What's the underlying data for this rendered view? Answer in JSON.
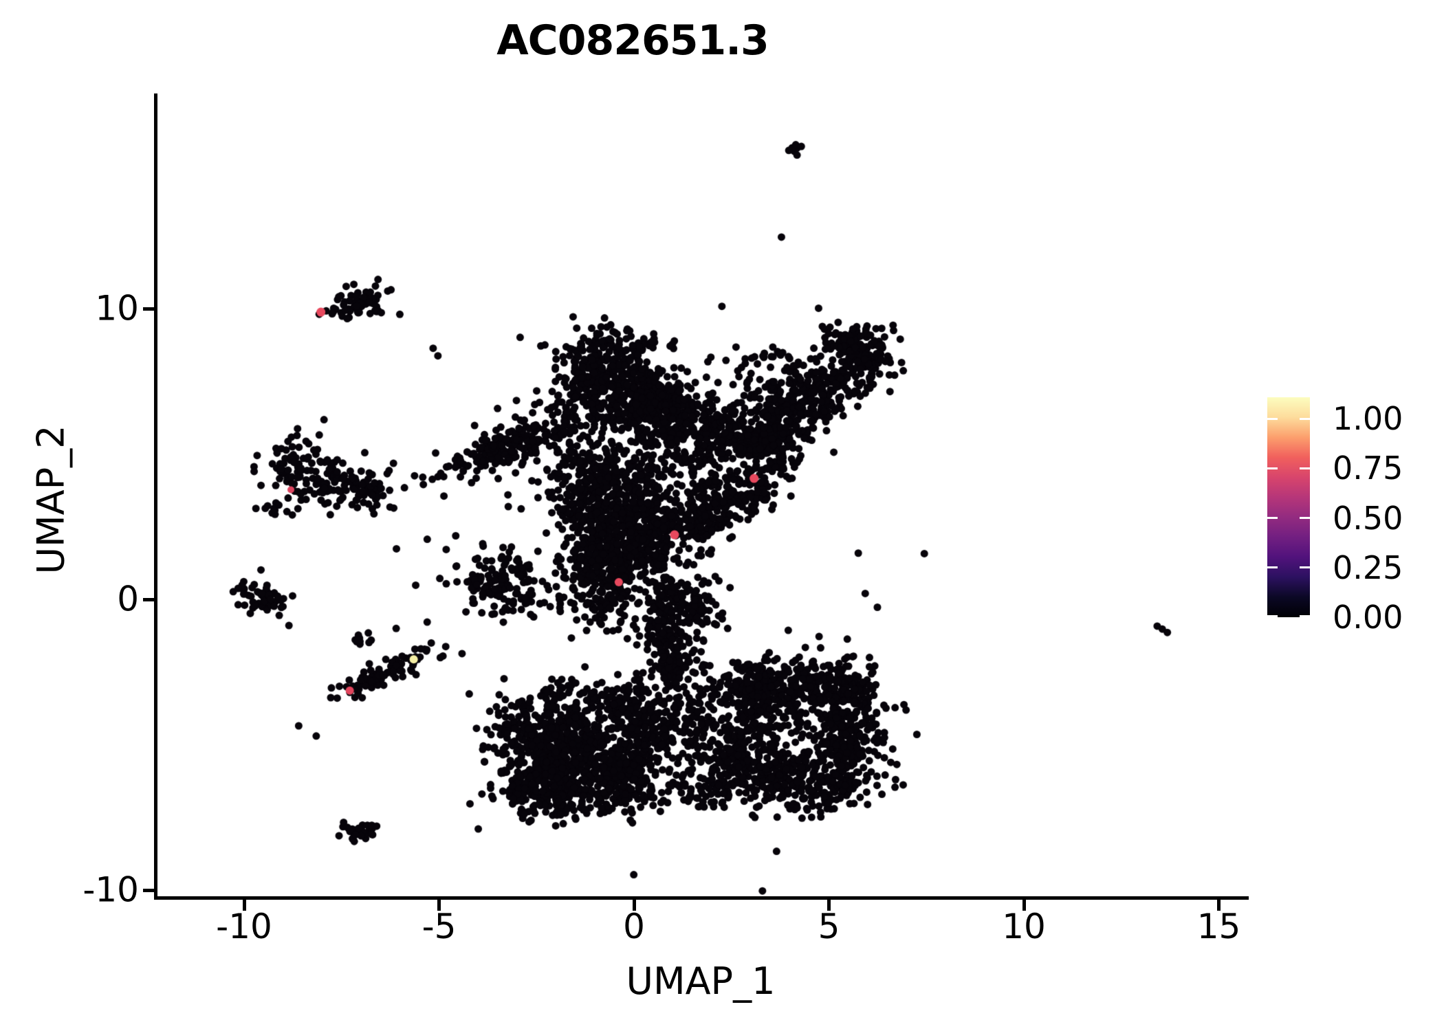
{
  "title": "AC082651.3",
  "axes": {
    "x_label": "UMAP_1",
    "y_label": "UMAP_2",
    "x_ticks": [
      {
        "value": -10,
        "label": "-10"
      },
      {
        "value": -5,
        "label": "-5"
      },
      {
        "value": 0,
        "label": "0"
      },
      {
        "value": 5,
        "label": "5"
      },
      {
        "value": 10,
        "label": "10"
      },
      {
        "value": 15,
        "label": "15"
      }
    ],
    "y_ticks": [
      {
        "value": 10,
        "label": "10"
      },
      {
        "value": 0,
        "label": "0"
      },
      {
        "value": -10,
        "label": "-10"
      }
    ]
  },
  "legend": {
    "ticks": [
      {
        "value": 1.0,
        "label": "1.00"
      },
      {
        "value": 0.75,
        "label": "0.75"
      },
      {
        "value": 0.5,
        "label": "0.50"
      },
      {
        "value": 0.25,
        "label": "0.25"
      },
      {
        "value": 0.0,
        "label": "0.00"
      }
    ],
    "gradient_stops": [
      "#000004",
      "#0B0825",
      "#2C1160",
      "#51127C",
      "#721F81",
      "#932B80",
      "#B63679",
      "#D8456C",
      "#F1605D",
      "#FC9F6D",
      "#FDDC9C",
      "#FCFDBF"
    ]
  },
  "chart_data": {
    "type": "scatter",
    "title": "AC082651.3",
    "xlabel": "UMAP_1",
    "ylabel": "UMAP_2",
    "xlim": [
      -12.2,
      15.7
    ],
    "ylim": [
      -10.3,
      17.3
    ],
    "x_tick_values": [
      -10,
      -5,
      0,
      5,
      10,
      15
    ],
    "y_tick_values": [
      -10,
      0,
      10
    ],
    "grid": false,
    "legend_position": "right",
    "colorbar": {
      "min": 0.0,
      "max": 1.108,
      "tick_values": [
        0.0,
        0.25,
        0.5,
        0.75,
        1.0
      ],
      "colormap": "magma"
    },
    "point_color": "#07040a",
    "point_radius": 5.5,
    "clusters": [
      {
        "name": "top-speck",
        "x": 4.15,
        "y": 15.45,
        "sx": 0.1,
        "sy": 0.15,
        "rot": 0,
        "n": 9
      },
      {
        "name": "topleft-main",
        "x": -6.95,
        "y": 10.25,
        "sx": 0.32,
        "sy": 0.3,
        "rot": 0,
        "n": 55
      },
      {
        "name": "topleft-strip",
        "x": -7.55,
        "y": 9.85,
        "sx": 0.28,
        "sy": 0.1,
        "rot": 0,
        "n": 14
      },
      {
        "name": "leftmid-west",
        "x": -8.55,
        "y": 4.5,
        "sx": 0.42,
        "sy": 0.55,
        "rot": 0,
        "n": 85
      },
      {
        "name": "leftmid-east",
        "x": -7.35,
        "y": 3.9,
        "sx": 0.62,
        "sy": 0.42,
        "rot": -10,
        "n": 115
      },
      {
        "name": "leftmid-tail",
        "x": -9.35,
        "y": 3.05,
        "sx": 0.22,
        "sy": 0.18,
        "rot": 0,
        "n": 10
      },
      {
        "name": "left-small",
        "x": -9.65,
        "y": 0.15,
        "sx": 0.3,
        "sy": 0.35,
        "rot": 0,
        "n": 42
      },
      {
        "name": "left-small-ext",
        "x": -9.05,
        "y": 0.0,
        "sx": 0.22,
        "sy": 0.15,
        "rot": 0,
        "n": 10
      },
      {
        "name": "diag-small",
        "x": -6.5,
        "y": -2.6,
        "sx": 0.75,
        "sy": 0.17,
        "rot": 33,
        "n": 85
      },
      {
        "name": "diag-top-blob",
        "x": -6.95,
        "y": -1.35,
        "sx": 0.16,
        "sy": 0.13,
        "rot": 0,
        "n": 10
      },
      {
        "name": "botleft-tiny",
        "x": -7.05,
        "y": -7.9,
        "sx": 0.26,
        "sy": 0.17,
        "rot": 0,
        "n": 30
      },
      {
        "name": "head-west",
        "x": -0.75,
        "y": 7.5,
        "sx": 0.6,
        "sy": 0.75,
        "rot": 0,
        "n": 360
      },
      {
        "name": "head-east",
        "x": 0.45,
        "y": 6.8,
        "sx": 0.55,
        "sy": 0.6,
        "rot": 0,
        "n": 280
      },
      {
        "name": "head-top-fringe",
        "x": -0.3,
        "y": 8.8,
        "sx": 0.8,
        "sy": 0.3,
        "rot": 0,
        "n": 50
      },
      {
        "name": "head-arm-join",
        "x": 2.0,
        "y": 6.1,
        "sx": 0.6,
        "sy": 0.55,
        "rot": 0,
        "n": 150
      },
      {
        "name": "ne-arm-low",
        "x": 3.3,
        "y": 5.4,
        "sx": 0.5,
        "sy": 0.45,
        "rot": 30,
        "n": 170
      },
      {
        "name": "ne-arm-mid",
        "x": 4.5,
        "y": 6.9,
        "sx": 0.85,
        "sy": 0.5,
        "rot": 42,
        "n": 260
      },
      {
        "name": "ne-tip",
        "x": 5.8,
        "y": 8.5,
        "sx": 0.42,
        "sy": 0.55,
        "rot": 20,
        "n": 170
      },
      {
        "name": "ne-sparse",
        "x": 3.7,
        "y": 7.8,
        "sx": 0.7,
        "sy": 0.6,
        "rot": 0,
        "n": 70
      },
      {
        "name": "shoulder-arm",
        "x": -3.1,
        "y": 5.3,
        "sx": 1.0,
        "sy": 0.32,
        "rot": 28,
        "n": 170
      },
      {
        "name": "shoulder-halo",
        "x": -3.3,
        "y": 5.2,
        "sx": 1.2,
        "sy": 0.6,
        "rot": 28,
        "n": 45
      },
      {
        "name": "west-hand",
        "x": -3.4,
        "y": 0.5,
        "sx": 0.55,
        "sy": 0.5,
        "rot": 0,
        "n": 120
      },
      {
        "name": "west-hand-halo",
        "x": -3.2,
        "y": 0.6,
        "sx": 0.9,
        "sy": 0.8,
        "rot": 0,
        "n": 35
      },
      {
        "name": "band-upper",
        "x": -0.9,
        "y": 3.6,
        "sx": 0.6,
        "sy": 1.2,
        "rot": 8,
        "n": 420
      },
      {
        "name": "band-mid",
        "x": 0.1,
        "y": 2.2,
        "sx": 0.7,
        "sy": 1.0,
        "rot": 0,
        "n": 320
      },
      {
        "name": "band-lower",
        "x": -0.85,
        "y": 0.8,
        "sx": 0.5,
        "sy": 0.8,
        "rot": 0,
        "n": 240
      },
      {
        "name": "band-fill",
        "x": 0.6,
        "y": 4.3,
        "sx": 0.8,
        "sy": 1.0,
        "rot": 0,
        "n": 130
      },
      {
        "name": "right-band",
        "x": 2.2,
        "y": 3.2,
        "sx": 1.05,
        "sy": 0.4,
        "rot": 42,
        "n": 270
      },
      {
        "name": "mid-sparse",
        "x": 1.6,
        "y": 4.9,
        "sx": 0.9,
        "sy": 0.8,
        "rot": 0,
        "n": 80
      },
      {
        "name": "neck-upper",
        "x": 1.1,
        "y": 0.1,
        "sx": 0.35,
        "sy": 0.5,
        "rot": 0,
        "n": 90
      },
      {
        "name": "neck-mid",
        "x": 0.8,
        "y": -1.2,
        "sx": 0.3,
        "sy": 0.6,
        "rot": 0,
        "n": 85
      },
      {
        "name": "neck-lower",
        "x": 1.0,
        "y": -2.4,
        "sx": 0.38,
        "sy": 0.5,
        "rot": 0,
        "n": 80
      },
      {
        "name": "neck-side",
        "x": 1.75,
        "y": -0.4,
        "sx": 0.3,
        "sy": 0.35,
        "rot": 0,
        "n": 40
      },
      {
        "name": "lowleft-core",
        "x": -1.8,
        "y": -5.0,
        "sx": 0.8,
        "sy": 0.8,
        "rot": 0,
        "n": 400
      },
      {
        "name": "lowleft-east",
        "x": -0.5,
        "y": -6.0,
        "sx": 0.8,
        "sy": 0.7,
        "rot": 0,
        "n": 360
      },
      {
        "name": "lowleft-south",
        "x": -2.3,
        "y": -6.5,
        "sx": 0.6,
        "sy": 0.5,
        "rot": 0,
        "n": 210
      },
      {
        "name": "lowleft-north",
        "x": 0.2,
        "y": -4.2,
        "sx": 0.6,
        "sy": 0.6,
        "rot": 0,
        "n": 170
      },
      {
        "name": "lowleft-fringe",
        "x": -1.0,
        "y": -3.5,
        "sx": 1.0,
        "sy": 0.4,
        "rot": 0,
        "n": 110
      },
      {
        "name": "lowleft-west",
        "x": -3.0,
        "y": -4.3,
        "sx": 0.4,
        "sy": 0.4,
        "rot": 0,
        "n": 55
      },
      {
        "name": "lowright-nw",
        "x": 3.0,
        "y": -3.2,
        "sx": 0.6,
        "sy": 0.5,
        "rot": 0,
        "n": 190
      },
      {
        "name": "lowright-north",
        "x": 4.6,
        "y": -2.9,
        "sx": 0.8,
        "sy": 0.5,
        "rot": 0,
        "n": 230
      },
      {
        "name": "lowright-east",
        "x": 5.5,
        "y": -4.6,
        "sx": 0.5,
        "sy": 0.9,
        "rot": 0,
        "n": 250
      },
      {
        "name": "lowright-south",
        "x": 4.2,
        "y": -6.3,
        "sx": 0.9,
        "sy": 0.5,
        "rot": 0,
        "n": 270
      },
      {
        "name": "lowright-west",
        "x": 2.7,
        "y": -5.2,
        "sx": 0.5,
        "sy": 0.7,
        "rot": 0,
        "n": 190
      },
      {
        "name": "lowright-fill",
        "x": 4.1,
        "y": -4.4,
        "sx": 0.7,
        "sy": 0.7,
        "rot": 0,
        "n": 70
      },
      {
        "name": "bridge-vert",
        "x": 1.6,
        "y": -4.6,
        "sx": 0.25,
        "sy": 0.8,
        "rot": 0,
        "n": 65
      },
      {
        "name": "bridge-south",
        "x": 1.9,
        "y": -6.7,
        "sx": 0.4,
        "sy": 0.3,
        "rot": 0,
        "n": 40
      },
      {
        "name": "outer-halo",
        "x": 0.5,
        "y": 1.0,
        "sx": 3.0,
        "sy": 4.2,
        "rot": 0,
        "n": 80
      }
    ],
    "singles": [
      [
        -5.2,
        -1.5
      ],
      [
        -6.6,
        -7.8
      ],
      [
        -8.6,
        -4.35
      ],
      [
        -8.15,
        -4.7
      ],
      [
        -8.85,
        -0.9
      ],
      [
        13.42,
        -0.92
      ],
      [
        13.55,
        -1.02
      ],
      [
        13.68,
        -1.14
      ],
      [
        -4.9,
        -1.95
      ],
      [
        -6.1,
        -1.0
      ]
    ],
    "highlighted_points": [
      {
        "x": -8.03,
        "y": 9.88,
        "color": "#e8495e",
        "radius": 6.5
      },
      {
        "x": -8.8,
        "y": 3.77,
        "color": "#dc4560",
        "radius": 5.0
      },
      {
        "x": 3.08,
        "y": 4.16,
        "color": "#e8495e",
        "radius": 6.5
      },
      {
        "x": 1.04,
        "y": 2.22,
        "color": "#e8495e",
        "radius": 6.5
      },
      {
        "x": -0.39,
        "y": 0.59,
        "color": "#e8495e",
        "radius": 6.0
      },
      {
        "x": -7.29,
        "y": -3.14,
        "color": "#e2455d",
        "radius": 6.0
      },
      {
        "x": -5.65,
        "y": -2.06,
        "color": "#f5efa5",
        "radius": 6.0
      }
    ]
  }
}
